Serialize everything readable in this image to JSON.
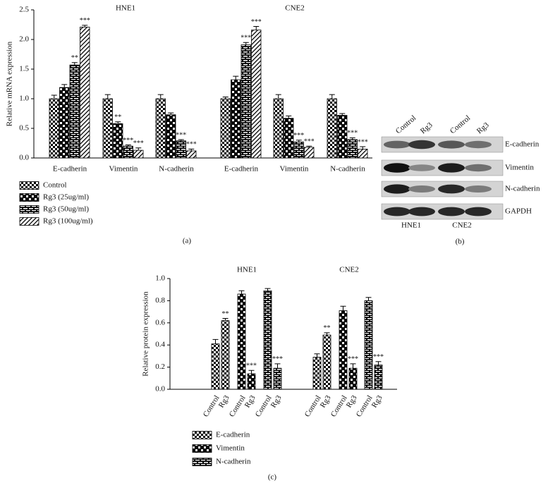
{
  "chart_data": [
    {
      "type": "bar",
      "y_label": "Relative mRNA expression",
      "caption": "(a)",
      "group_labels": [
        "HNE1",
        "CNE2"
      ],
      "categories": [
        "E-cadherin",
        "Vimentin",
        "N-cadherin",
        "E-cadherin",
        "Vimentin",
        "N-cadherin"
      ],
      "ylim": [
        0,
        2.5
      ],
      "yticks": [
        {
          "value": 0,
          "label": "0.0"
        },
        0.5,
        {
          "value": 1,
          "label": "1.0"
        },
        1.5,
        {
          "value": 2,
          "label": "2.0"
        },
        2.5
      ],
      "series": [
        {
          "name": "Control",
          "pattern": "checker",
          "values": [
            1.0,
            1.0,
            1.0,
            1.0,
            1.0,
            1.0
          ],
          "errors": [
            0.06,
            0.07,
            0.07,
            0.03,
            0.07,
            0.07
          ],
          "annotations": [
            null,
            null,
            null,
            null,
            null,
            null
          ]
        },
        {
          "name": "Rg3 (25ug/ml)",
          "pattern": "checker-large",
          "values": [
            1.19,
            0.58,
            0.73,
            1.32,
            0.67,
            0.72
          ],
          "errors": [
            0.05,
            0.03,
            0.03,
            0.06,
            0.04,
            0.03
          ],
          "annotations": [
            null,
            "**",
            null,
            null,
            null,
            null
          ]
        },
        {
          "name": "Rg3 (50ug/ml)",
          "pattern": "brick",
          "values": [
            1.57,
            0.2,
            0.29,
            1.91,
            0.27,
            0.31
          ],
          "errors": [
            0.04,
            0.02,
            0.02,
            0.04,
            0.03,
            0.03
          ],
          "annotations": [
            "**",
            "***",
            "***",
            "***",
            "***",
            "***"
          ]
        },
        {
          "name": "Rg3 (100ug/ml)",
          "pattern": "hatch",
          "values": [
            2.21,
            0.13,
            0.12,
            2.16,
            0.18,
            0.15
          ],
          "errors": [
            0.03,
            0.04,
            0.03,
            0.06,
            0.02,
            0.04
          ],
          "annotations": [
            "***",
            "***",
            "***",
            "***",
            "***",
            "***"
          ]
        }
      ]
    },
    {
      "type": "bar",
      "y_label": "Relative protein expression",
      "caption": "(c)",
      "group_labels": [
        "HNE1",
        "CNE2"
      ],
      "categories": [
        "Control",
        "Rg3",
        "Control",
        "Rg3",
        "Control",
        "Rg3",
        "Control",
        "Rg3",
        "Control",
        "Rg3",
        "Control",
        "Rg3"
      ],
      "ylim": [
        0,
        1.0
      ],
      "yticks": [
        {
          "value": 0,
          "label": "0.0"
        },
        0.2,
        0.4,
        0.6,
        0.8,
        {
          "value": 1,
          "label": "1.0"
        }
      ],
      "series": [
        {
          "name": "E-cadherin",
          "pattern": "checker",
          "values": [
            0.41,
            0.62,
            null,
            null,
            null,
            null,
            0.29,
            0.49,
            null,
            null,
            null,
            null
          ],
          "errors": [
            0.04,
            0.02,
            null,
            null,
            null,
            null,
            0.03,
            0.02,
            null,
            null,
            null,
            null
          ],
          "annotations": [
            null,
            "**",
            null,
            null,
            null,
            null,
            null,
            "**",
            null,
            null,
            null,
            null
          ]
        },
        {
          "name": "Vimentin",
          "pattern": "checker-large",
          "values": [
            null,
            null,
            0.86,
            0.14,
            null,
            null,
            null,
            null,
            0.71,
            0.19,
            null,
            null
          ],
          "errors": [
            null,
            null,
            0.03,
            0.03,
            null,
            null,
            null,
            null,
            0.04,
            0.04,
            null,
            null
          ],
          "annotations": [
            null,
            null,
            null,
            "***",
            null,
            null,
            null,
            null,
            null,
            "***",
            null,
            null
          ]
        },
        {
          "name": "N-cadherin",
          "pattern": "brick",
          "values": [
            null,
            null,
            null,
            null,
            0.89,
            0.19,
            null,
            null,
            null,
            null,
            0.8,
            0.22
          ],
          "errors": [
            null,
            null,
            null,
            null,
            0.02,
            0.04,
            null,
            null,
            null,
            null,
            0.03,
            0.03
          ],
          "annotations": [
            null,
            null,
            null,
            null,
            null,
            "***",
            null,
            null,
            null,
            null,
            null,
            "***"
          ]
        }
      ]
    }
  ],
  "blot": {
    "caption": "(b)",
    "columns": [
      "Control",
      "Rg3",
      "Control",
      "Rg3"
    ],
    "rows": [
      "E-cadherin",
      "Vimentin",
      "N-cadherin",
      "GAPDH"
    ],
    "groups": [
      "HNE1",
      "CNE2"
    ]
  }
}
